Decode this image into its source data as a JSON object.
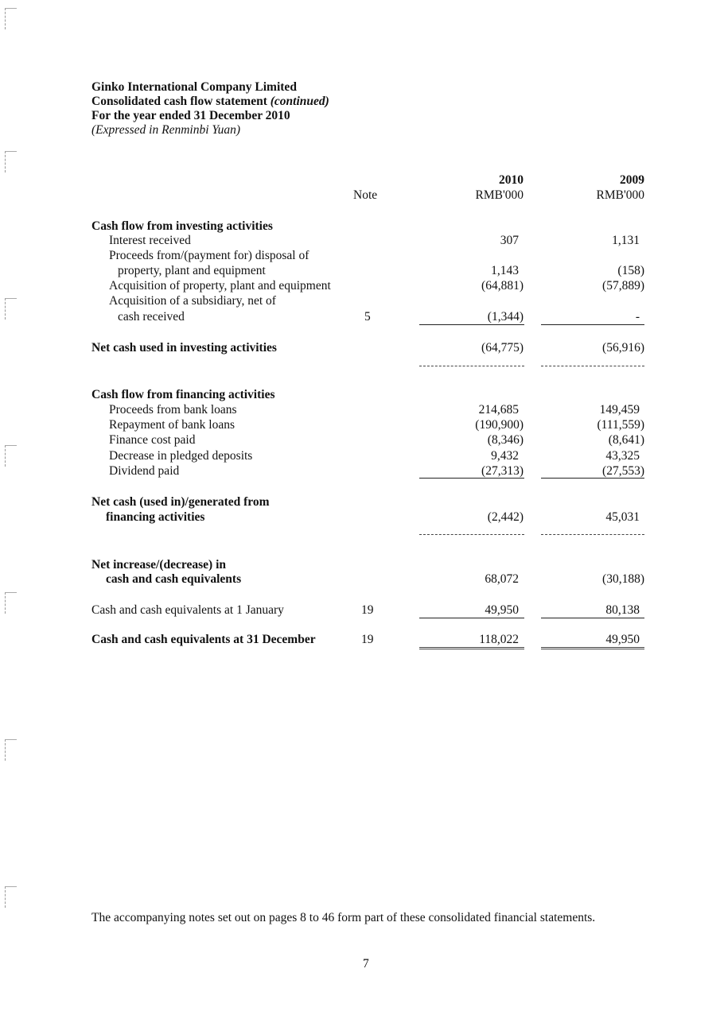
{
  "header": {
    "company": "Ginko International Company Limited",
    "statement": "Consolidated cash flow statement",
    "continued": "(continued)",
    "period": "For the year ended 31 December 2010",
    "currency": "(Expressed in Renminbi Yuan)"
  },
  "columns": {
    "note": "Note",
    "year1": "2010",
    "year2": "2009",
    "unit1": "RMB'000",
    "unit2": "RMB'000"
  },
  "investing": {
    "title": "Cash flow from investing activities",
    "interest": {
      "label": "Interest received",
      "v2010": "307",
      "v2009": "1,131"
    },
    "disposal": {
      "label1": "Proceeds from/(payment for) disposal of",
      "label2": "property, plant and equipment",
      "v2010": "1,143",
      "v2009": "(158)"
    },
    "acq_ppe": {
      "label": "Acquisition of property, plant and equipment",
      "v2010": "(64,881)",
      "v2009": "(57,889)"
    },
    "acq_sub": {
      "label1": "Acquisition of a subsidiary, net of",
      "label2": "cash received",
      "note": "5",
      "v2010": "(1,344)",
      "v2009": "-"
    },
    "net": {
      "label": "Net cash used in investing activities",
      "v2010": "(64,775)",
      "v2009": "(56,916)"
    }
  },
  "financing": {
    "title": "Cash flow from financing activities",
    "proceeds": {
      "label": "Proceeds from bank loans",
      "v2010": "214,685",
      "v2009": "149,459"
    },
    "repayment": {
      "label": "Repayment of bank loans",
      "v2010": "(190,900)",
      "v2009": "(111,559)"
    },
    "finance_cost": {
      "label": "Finance cost paid",
      "v2010": "(8,346)",
      "v2009": "(8,641)"
    },
    "pledged": {
      "label": "Decrease in pledged deposits",
      "v2010": "9,432",
      "v2009": "43,325"
    },
    "dividend": {
      "label": "Dividend paid",
      "v2010": "(27,313)",
      "v2009": "(27,553)"
    },
    "net": {
      "label1": "Net cash (used in)/generated from",
      "label2": "financing activities",
      "v2010": "(2,442)",
      "v2009": "45,031"
    }
  },
  "net_change": {
    "label1": "Net increase/(decrease) in",
    "label2": "cash and cash equivalents",
    "v2010": "68,072",
    "v2009": "(30,188)"
  },
  "opening": {
    "label": "Cash and cash equivalents at 1 January",
    "note": "19",
    "v2010": "49,950",
    "v2009": "80,138"
  },
  "closing": {
    "label": "Cash and cash equivalents at 31 December",
    "note": "19",
    "v2010": "118,022",
    "v2009": "49,950"
  },
  "footer": {
    "text": "The accompanying notes set out on pages 8 to 46 form part of these consolidated financial statements.",
    "page": "7"
  }
}
